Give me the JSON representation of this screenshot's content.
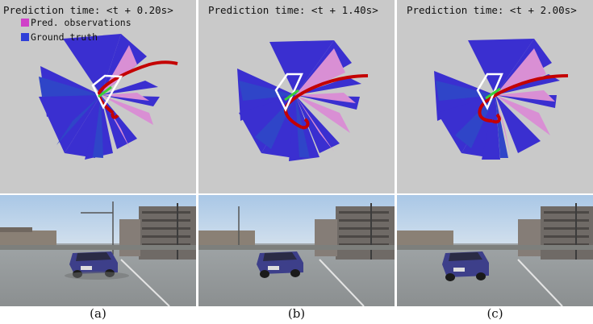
{
  "panels": [
    {
      "title": "Prediction time: <t + 0.20s>",
      "caption": "(a)"
    },
    {
      "title": "Prediction time: <t + 1.40s>",
      "caption": "(b)"
    },
    {
      "title": "Prediction time: <t + 2.00s>",
      "caption": "(c)"
    }
  ],
  "legend": {
    "pred_label": "Pred. observations",
    "gt_label": "Ground truth"
  },
  "colors": {
    "pred": "#d98fd4",
    "gt": "#3a2fd0",
    "gt_dark": "#2f45c8",
    "trajectory": "#c40000",
    "vehicle": "#ffffff",
    "heading": "#38d038",
    "plot_bg": "#c9c9c9"
  },
  "icons": [
    "sector-plot",
    "camera-photo"
  ]
}
